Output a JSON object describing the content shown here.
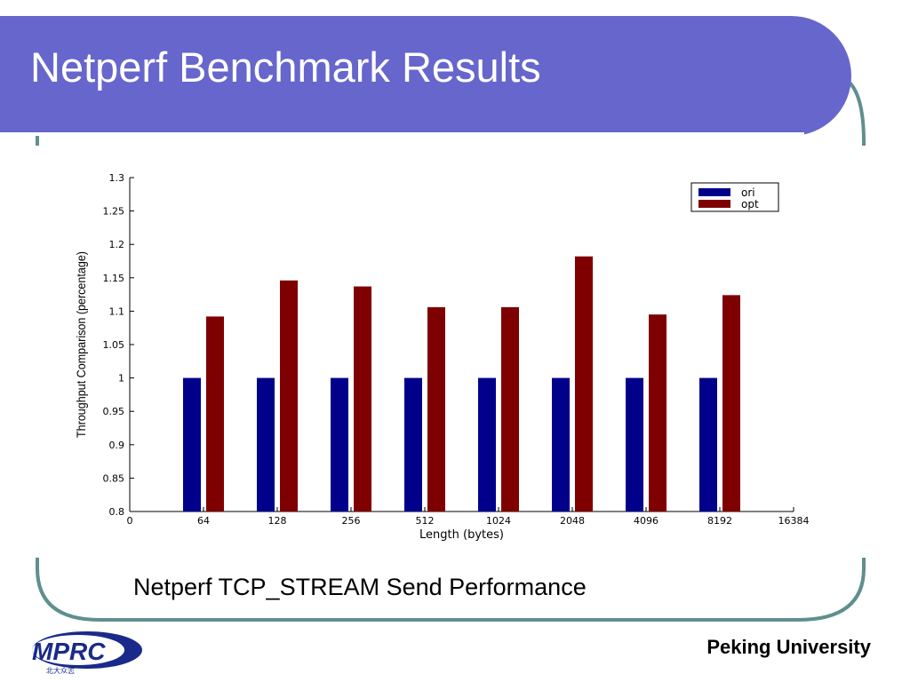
{
  "slide": {
    "title": "Netperf Benchmark Results",
    "caption": "Netperf TCP_STREAM Send Performance",
    "organization": "Peking University",
    "logo_text": "MPRC",
    "logo_subtext": "北大众志"
  },
  "colors": {
    "banner": "#6666cc",
    "frame": "#5f8f8f",
    "ori": "#00008b",
    "opt": "#7f0000"
  },
  "chart_data": {
    "type": "bar",
    "title": "",
    "xlabel": "Length (bytes)",
    "ylabel": "Throughput Comparison (percentage)",
    "x_ticks": [
      "0",
      "64",
      "128",
      "256",
      "512",
      "1024",
      "2048",
      "4096",
      "8192",
      "16384"
    ],
    "categories": [
      "64",
      "128",
      "256",
      "512",
      "1024",
      "2048",
      "4096",
      "8192"
    ],
    "y_ticks": [
      "0.8",
      "0.85",
      "0.9",
      "0.95",
      "1",
      "1.05",
      "1.1",
      "1.15",
      "1.2",
      "1.25",
      "1.3"
    ],
    "ylim": [
      0.8,
      1.3
    ],
    "legend_position": "top-right",
    "grid": false,
    "series": [
      {
        "name": "ori",
        "color": "#00008b",
        "values": [
          1,
          1,
          1,
          1,
          1,
          1,
          1,
          1
        ]
      },
      {
        "name": "opt",
        "color": "#7f0000",
        "values": [
          1.092,
          1.146,
          1.137,
          1.106,
          1.106,
          1.182,
          1.095,
          1.124
        ]
      }
    ]
  }
}
